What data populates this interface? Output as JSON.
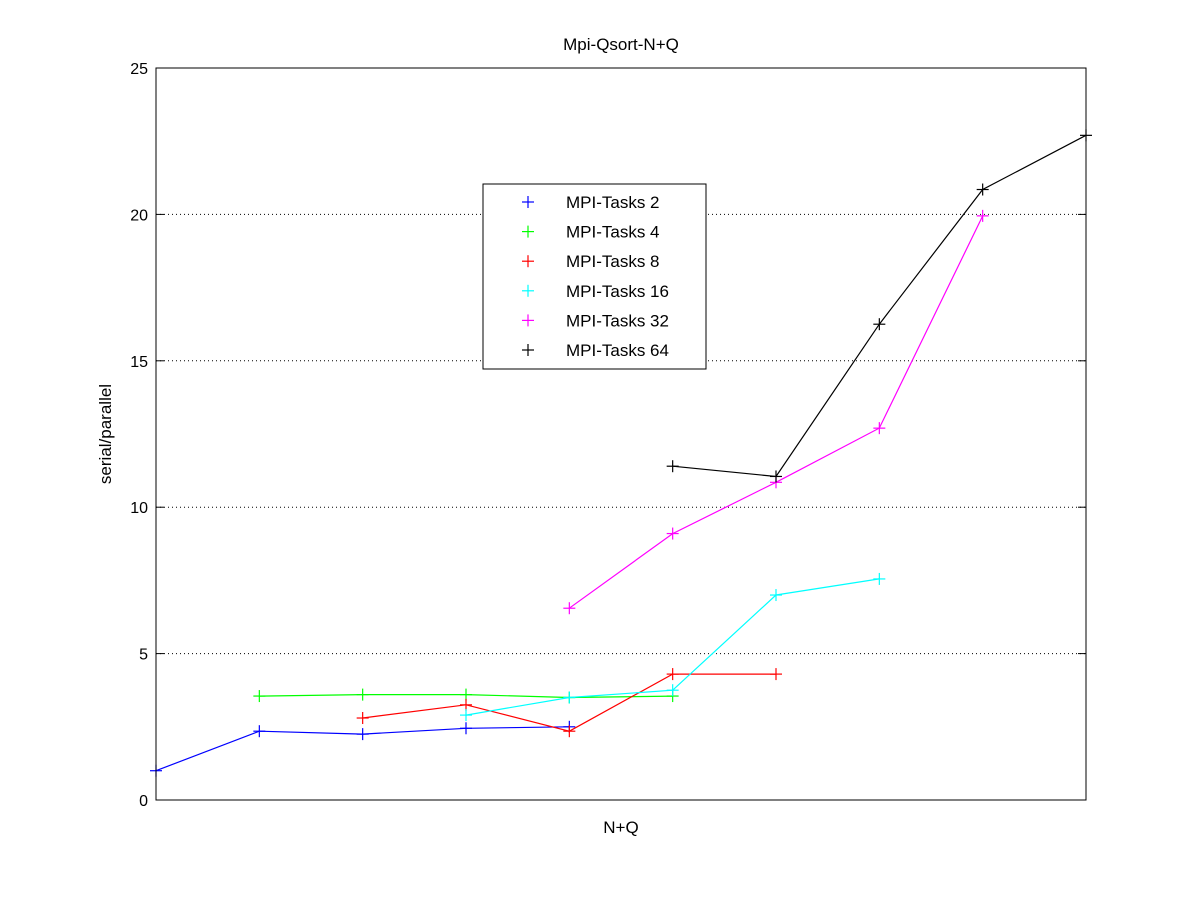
{
  "chart_data": {
    "type": "line",
    "title": "Mpi-Qsort-N+Q",
    "xlabel": "N+Q",
    "ylabel": "serial/parallel",
    "x_ticks_visible": false,
    "xlim": [
      1,
      10
    ],
    "ylim": [
      0,
      25
    ],
    "yticks": [
      0,
      5,
      10,
      15,
      20,
      25
    ],
    "ytick_labels": [
      "0",
      "5",
      "10",
      "15",
      "20",
      "25"
    ],
    "grid": "y-dotted",
    "legend_position": "upper-center",
    "marker": "+",
    "series": [
      {
        "name": "MPI-Tasks 2",
        "color": "#0000ff",
        "x": [
          1,
          2,
          3,
          4,
          5
        ],
        "values": [
          1.0,
          2.35,
          2.25,
          2.45,
          2.5
        ]
      },
      {
        "name": "MPI-Tasks 4",
        "color": "#00ff00",
        "x": [
          2,
          3,
          4,
          5,
          6
        ],
        "values": [
          3.55,
          3.6,
          3.6,
          3.5,
          3.55
        ]
      },
      {
        "name": "MPI-Tasks 8",
        "color": "#ff0000",
        "x": [
          3,
          4,
          5,
          6,
          7
        ],
        "values": [
          2.8,
          3.25,
          2.35,
          4.3,
          4.3
        ]
      },
      {
        "name": "MPI-Tasks 16",
        "color": "#00ffff",
        "x": [
          4,
          5,
          6,
          7,
          8
        ],
        "values": [
          2.9,
          3.5,
          3.75,
          7.0,
          7.55
        ]
      },
      {
        "name": "MPI-Tasks 32",
        "color": "#ff00ff",
        "x": [
          5,
          6,
          7,
          8,
          9
        ],
        "values": [
          6.55,
          9.1,
          10.85,
          12.7,
          19.95
        ]
      },
      {
        "name": "MPI-Tasks 64",
        "color": "#000000",
        "x": [
          6,
          7,
          8,
          9,
          10
        ],
        "values": [
          11.4,
          11.05,
          16.25,
          20.85,
          22.7
        ]
      }
    ]
  }
}
